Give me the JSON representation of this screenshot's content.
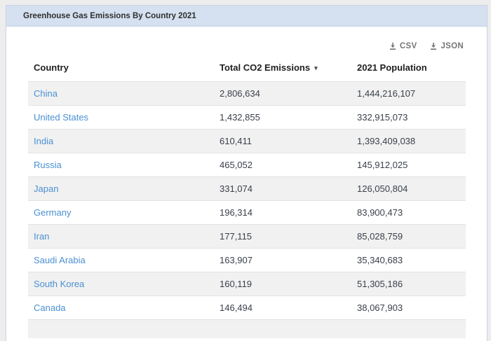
{
  "panel": {
    "title": "Greenhouse Gas Emissions By Country 2021"
  },
  "toolbar": {
    "csv_label": "CSV",
    "json_label": "JSON",
    "download_icon": "download-arrow-into-tray"
  },
  "table": {
    "sort_desc_glyph": "▾",
    "sorted_column": "Total CO2 Emissions",
    "sort_direction": "descending",
    "columns": [
      {
        "label": "Country"
      },
      {
        "label": "Total CO2 Emissions"
      },
      {
        "label": "2021 Population"
      }
    ],
    "rows": [
      {
        "country": "China",
        "emissions": "2,806,634",
        "population": "1,444,216,107"
      },
      {
        "country": "United States",
        "emissions": "1,432,855",
        "population": "332,915,073"
      },
      {
        "country": "India",
        "emissions": "610,411",
        "population": "1,393,409,038"
      },
      {
        "country": "Russia",
        "emissions": "465,052",
        "population": "145,912,025"
      },
      {
        "country": "Japan",
        "emissions": "331,074",
        "population": "126,050,804"
      },
      {
        "country": "Germany",
        "emissions": "196,314",
        "population": "83,900,473"
      },
      {
        "country": "Iran",
        "emissions": "177,115",
        "population": "85,028,759"
      },
      {
        "country": "Saudi Arabia",
        "emissions": "163,907",
        "population": "35,340,683"
      },
      {
        "country": "South Korea",
        "emissions": "160,119",
        "population": "51,305,186"
      },
      {
        "country": "Canada",
        "emissions": "146,494",
        "population": "38,067,903"
      }
    ]
  },
  "colors": {
    "panel_header_bg": "#d5e1f0",
    "link": "#4a90d2",
    "row_stripe": "#f1f1f1",
    "export_text": "#757575"
  }
}
